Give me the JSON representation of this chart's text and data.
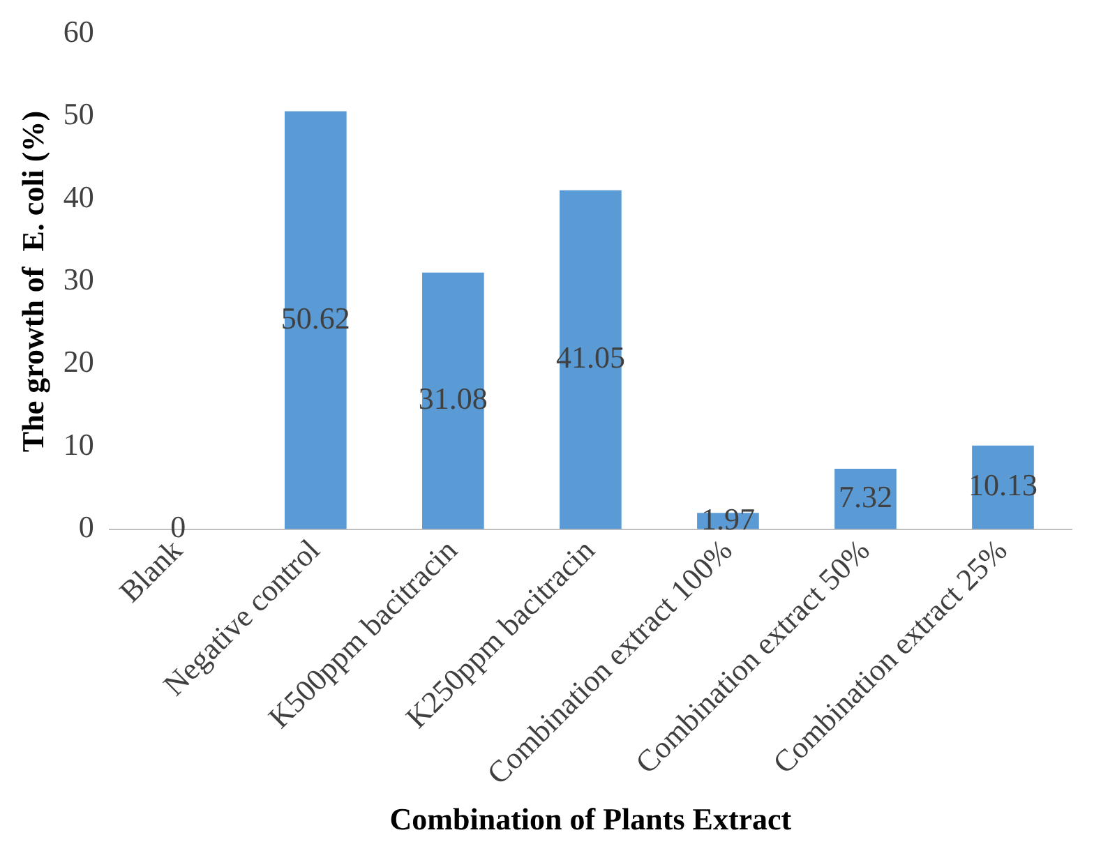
{
  "chart_data": {
    "type": "bar",
    "xlabel": "Combination of Plants Extract",
    "ylabel": "The growth of  E. coli (%)",
    "categories": [
      "Blank",
      "Negative control",
      "K500ppm bacitracin",
      "K250ppm bacitracin",
      "Combination extract 100%",
      "Combination extract 50%",
      "Combination extract 25%"
    ],
    "values": [
      0,
      50.62,
      31.08,
      41.05,
      1.97,
      7.32,
      10.13
    ],
    "color": "#5b9bd5",
    "ylim": [
      0,
      60
    ],
    "yticks": [
      0,
      10,
      20,
      30,
      40,
      50,
      60
    ],
    "grid": false,
    "legend": false,
    "data_labels": true
  }
}
